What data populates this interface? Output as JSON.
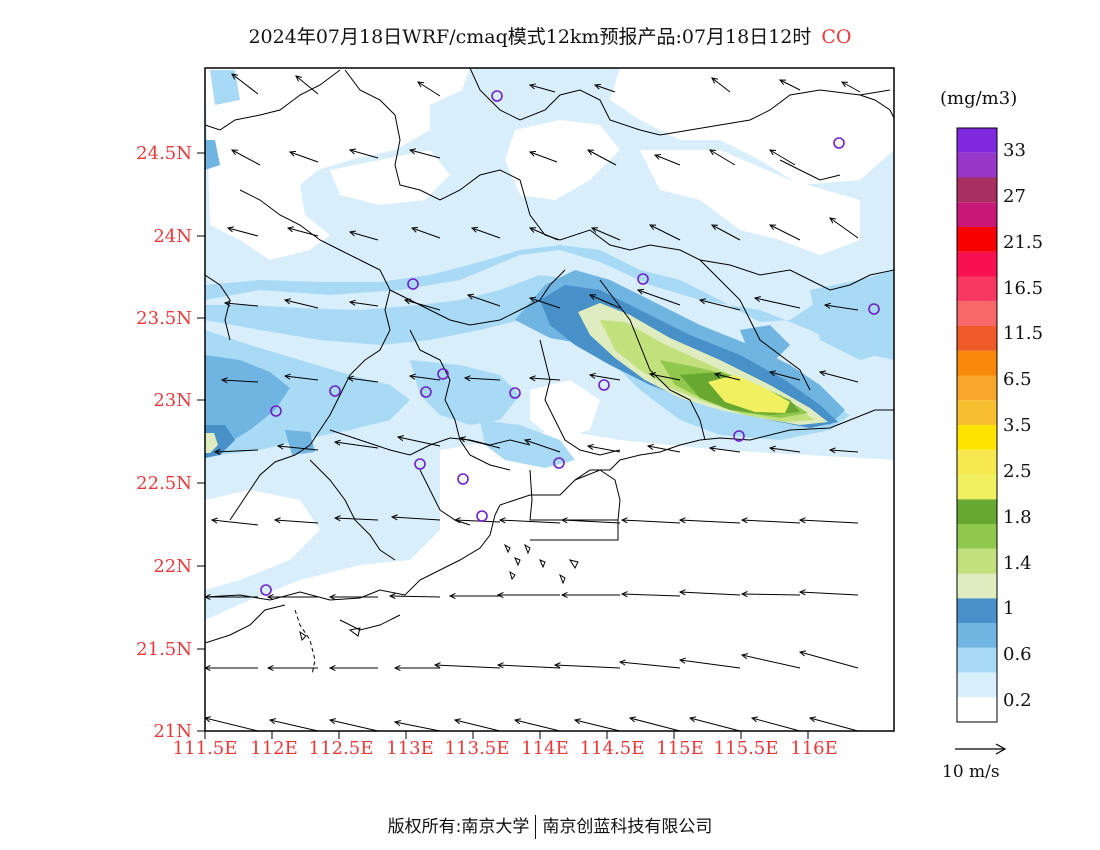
{
  "title": {
    "main": "2024年07月18日WRF/cmaq模式12km预报产品:07月18日12时",
    "species": "CO"
  },
  "axes": {
    "lat_labels": [
      "24.5N",
      "24N",
      "23.5N",
      "23N",
      "22.5N",
      "22N",
      "21.5N",
      "21N"
    ],
    "lon_labels": [
      "111.5E",
      "112E",
      "112.5E",
      "113E",
      "113.5E",
      "114E",
      "114.5E",
      "115E",
      "115.5E",
      "116E"
    ]
  },
  "colorbar": {
    "unit": "(mg/m3)",
    "labels": [
      "33",
      "27",
      "21.5",
      "16.5",
      "11.5",
      "6.5",
      "3.5",
      "2.5",
      "1.8",
      "1.4",
      "1",
      "0.6",
      "0.2"
    ],
    "colors_bottom_to_top": [
      "#ffffff",
      "#d8eefa",
      "#a8daf5",
      "#70b4e2",
      "#4890c8",
      "#dfecc0",
      "#c2e07c",
      "#90c84e",
      "#68a830",
      "#f0f060",
      "#f8e850",
      "#ffe400",
      "#f8c030",
      "#f8a828",
      "#f88808",
      "#f05a28",
      "#f86868",
      "#f83860",
      "#f81050",
      "#f80000",
      "#c81878",
      "#a83060",
      "#9838c8",
      "#8028e0"
    ],
    "reference_vector": "10 m/s"
  },
  "markers": {
    "color": "#7020c8"
  },
  "footer": {
    "left": "版权所有:南京大学",
    "right": "南京创蓝科技有限公司"
  }
}
